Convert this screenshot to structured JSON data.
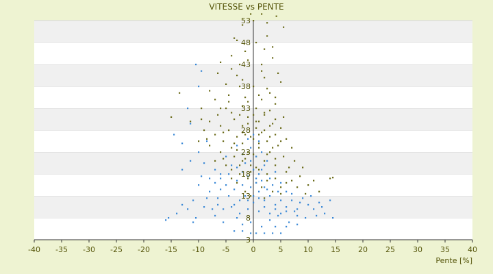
{
  "chart_data": {
    "type": "scatter",
    "title": "VITESSE vs PENTE",
    "xlabel": "Pente [%]",
    "ylabel": "",
    "xlim": [
      -40,
      40
    ],
    "ylim": [
      3,
      53
    ],
    "x_ticks": [
      "-40",
      "-35",
      "-30",
      "-25",
      "-20",
      "-15",
      "-10",
      "-5",
      "0",
      "5",
      "10",
      "15",
      "20",
      "25",
      "30",
      "35",
      "40"
    ],
    "y_ticks": [
      "3",
      "8",
      "13",
      "18",
      "23",
      "28",
      "33",
      "38",
      "43",
      "48",
      "53"
    ],
    "grid": "horizontal bands",
    "legend": "none",
    "series": [
      {
        "color": "#6b6b1a",
        "points": [
          [
            -0.5,
            54.5
          ],
          [
            1.5,
            54.5
          ],
          [
            4.2,
            54
          ],
          [
            0,
            53
          ],
          [
            2.5,
            52.5
          ],
          [
            -2,
            52
          ],
          [
            5.5,
            51.5
          ],
          [
            2.5,
            49.5
          ],
          [
            -3,
            48.5
          ],
          [
            0.5,
            48
          ],
          [
            3.5,
            47
          ],
          [
            -1.5,
            46
          ],
          [
            3.5,
            44.5
          ],
          [
            -6,
            43.5
          ],
          [
            -2.5,
            43
          ],
          [
            1.5,
            43
          ],
          [
            -4,
            42
          ],
          [
            -6.5,
            41
          ],
          [
            4.5,
            41
          ],
          [
            2,
            40
          ],
          [
            -2,
            39.5
          ],
          [
            5,
            39
          ],
          [
            -5,
            38.5
          ],
          [
            -2.5,
            38
          ],
          [
            2.5,
            37.5
          ],
          [
            -13.5,
            36.5
          ],
          [
            -8,
            37
          ],
          [
            -4.5,
            36
          ],
          [
            3,
            36.5
          ],
          [
            -7,
            35
          ],
          [
            1.5,
            35
          ],
          [
            -1,
            34.5
          ],
          [
            4,
            34
          ],
          [
            -9.5,
            33
          ],
          [
            -6,
            33
          ],
          [
            0.5,
            33
          ],
          [
            3,
            32.5
          ],
          [
            -15,
            31
          ],
          [
            -4,
            32
          ],
          [
            -1,
            31
          ],
          [
            2,
            31.5
          ],
          [
            5.5,
            31
          ],
          [
            -11.5,
            30
          ],
          [
            -8,
            30
          ],
          [
            -3.5,
            30.5
          ],
          [
            1,
            30
          ],
          [
            4,
            30.5
          ],
          [
            -6,
            29
          ],
          [
            -2,
            29
          ],
          [
            0.5,
            28.5
          ],
          [
            3,
            29
          ],
          [
            -9,
            28
          ],
          [
            -4.5,
            28
          ],
          [
            2,
            28
          ],
          [
            5,
            28.5
          ],
          [
            -7,
            27
          ],
          [
            -1.5,
            27
          ],
          [
            1,
            27
          ],
          [
            4,
            27
          ],
          [
            -3,
            26.5
          ],
          [
            0,
            26
          ],
          [
            6,
            26
          ],
          [
            -10,
            25.5
          ],
          [
            -5.5,
            25.5
          ],
          [
            -2,
            25
          ],
          [
            2.5,
            25.5
          ],
          [
            -8,
            24.5
          ],
          [
            -4,
            24
          ],
          [
            1,
            24
          ],
          [
            4.5,
            24.5
          ],
          [
            7,
            24
          ],
          [
            -6,
            23
          ],
          [
            -1,
            23
          ],
          [
            3,
            23
          ],
          [
            -3.5,
            22
          ],
          [
            0.5,
            22
          ],
          [
            5.5,
            22
          ],
          [
            -7,
            21
          ],
          [
            -2,
            21
          ],
          [
            2,
            21
          ],
          [
            7.5,
            21
          ],
          [
            -5,
            20
          ],
          [
            -0.5,
            20
          ],
          [
            4,
            20
          ],
          [
            9,
            19.5
          ],
          [
            -4,
            19
          ],
          [
            1,
            19
          ],
          [
            6,
            18.5
          ],
          [
            -2.5,
            18
          ],
          [
            2.5,
            18
          ],
          [
            8.5,
            17.5
          ],
          [
            -1,
            17
          ],
          [
            4,
            17
          ],
          [
            11,
            16.5
          ],
          [
            -3,
            16
          ],
          [
            0.5,
            16
          ],
          [
            6,
            16
          ],
          [
            14,
            17
          ],
          [
            14.5,
            17.2
          ],
          [
            1.5,
            15
          ],
          [
            8,
            15
          ],
          [
            10,
            15.5
          ],
          [
            -1.5,
            14
          ],
          [
            3.5,
            14
          ],
          [
            12,
            14
          ],
          [
            -0.5,
            13
          ],
          [
            5,
            13.5
          ],
          [
            2,
            12.5
          ],
          [
            -5.5,
            21.5
          ],
          [
            -3,
            23.5
          ],
          [
            3,
            26.5
          ],
          [
            -1.5,
            35.5
          ],
          [
            0,
            38
          ],
          [
            -4,
            45
          ],
          [
            1,
            25
          ],
          [
            -2,
            27.5
          ],
          [
            2,
            32
          ],
          [
            0,
            22.5
          ],
          [
            -1,
            29.5
          ],
          [
            1,
            36
          ],
          [
            3.5,
            29.5
          ],
          [
            -5,
            33
          ],
          [
            -3.5,
            25
          ],
          [
            -8.5,
            26
          ],
          [
            -2.5,
            20
          ],
          [
            4,
            21.5
          ],
          [
            6.5,
            19.5
          ],
          [
            2.5,
            16.5
          ],
          [
            -0.5,
            18.5
          ],
          [
            0.5,
            30
          ],
          [
            -2.5,
            31.5
          ],
          [
            1.5,
            27.5
          ],
          [
            3.5,
            24
          ],
          [
            0.5,
            19.5
          ],
          [
            -1.5,
            21.5
          ],
          [
            5,
            15
          ],
          [
            -4,
            17
          ],
          [
            9.5,
            13.5
          ],
          [
            7,
            16.5
          ],
          [
            -6.5,
            31.5
          ],
          [
            -9.5,
            30.5
          ],
          [
            1.5,
            41.5
          ],
          [
            -3,
            40.5
          ],
          [
            -1,
            44
          ],
          [
            2,
            46.5
          ],
          [
            -3.5,
            49
          ],
          [
            4,
            35.5
          ],
          [
            -5.5,
            27.5
          ],
          [
            -0.5,
            26.5
          ],
          [
            2.5,
            22.5
          ],
          [
            5,
            25.5
          ],
          [
            -2,
            33.5
          ],
          [
            0,
            31.5
          ],
          [
            -4.5,
            34.5
          ]
        ]
      },
      {
        "color": "#3a88d6",
        "points": [
          [
            -10.5,
            43
          ],
          [
            -9.5,
            41.5
          ],
          [
            -10,
            38
          ],
          [
            -12,
            33
          ],
          [
            -11.5,
            29.5
          ],
          [
            -14.5,
            27
          ],
          [
            -13,
            25
          ],
          [
            -8.5,
            25.5
          ],
          [
            -10,
            23
          ],
          [
            -11.5,
            21
          ],
          [
            -9,
            20.5
          ],
          [
            -13,
            19
          ],
          [
            -7,
            19
          ],
          [
            -9.5,
            17.5
          ],
          [
            -6,
            17
          ],
          [
            -10,
            15.5
          ],
          [
            -5,
            15.5
          ],
          [
            -8,
            14
          ],
          [
            -3.5,
            14.5
          ],
          [
            -11,
            12
          ],
          [
            -6.5,
            12.5
          ],
          [
            -9,
            10.5
          ],
          [
            -4,
            10.5
          ],
          [
            -15.5,
            8
          ],
          [
            -16,
            7.5
          ],
          [
            -10.5,
            8
          ],
          [
            -11,
            7
          ],
          [
            -7,
            8.5
          ],
          [
            -5.5,
            7
          ],
          [
            -3,
            8
          ],
          [
            -2,
            6.5
          ],
          [
            -0.5,
            7
          ],
          [
            1.5,
            6
          ],
          [
            3,
            7.5
          ],
          [
            4.5,
            8.5
          ],
          [
            6.5,
            7
          ],
          [
            8,
            8.5
          ],
          [
            9.5,
            8
          ],
          [
            11,
            10
          ],
          [
            11.5,
            8.5
          ],
          [
            13,
            9
          ],
          [
            14.5,
            8
          ],
          [
            14,
            12
          ],
          [
            12,
            11.5
          ],
          [
            10,
            11
          ],
          [
            8.5,
            11.5
          ],
          [
            7,
            12
          ],
          [
            6,
            10.5
          ],
          [
            5,
            12
          ],
          [
            4,
            11
          ],
          [
            3,
            13
          ],
          [
            2,
            12
          ],
          [
            1,
            14
          ],
          [
            0.5,
            16
          ],
          [
            -0.5,
            15
          ],
          [
            -1.5,
            13
          ],
          [
            -2.5,
            12
          ],
          [
            -3.5,
            11
          ],
          [
            -4.5,
            13
          ],
          [
            -5.5,
            10
          ],
          [
            -6.5,
            11
          ],
          [
            -7.5,
            10
          ],
          [
            -8.5,
            12.5
          ],
          [
            -1,
            17.5
          ],
          [
            0,
            19
          ],
          [
            1,
            18
          ],
          [
            2,
            20
          ],
          [
            3,
            17
          ],
          [
            -2,
            18.5
          ],
          [
            -3,
            16.5
          ],
          [
            -1.5,
            20.5
          ],
          [
            0.5,
            22
          ],
          [
            1.5,
            23
          ],
          [
            -0.5,
            24
          ],
          [
            -2,
            22.5
          ],
          [
            2.5,
            21
          ],
          [
            4,
            18.5
          ],
          [
            5,
            16
          ],
          [
            6,
            14
          ],
          [
            7,
            13.5
          ],
          [
            8,
            10
          ],
          [
            9,
            12.5
          ],
          [
            10.5,
            13
          ],
          [
            12.5,
            10.5
          ],
          [
            -4,
            20
          ],
          [
            -5,
            22
          ],
          [
            -3,
            24.5
          ],
          [
            -1,
            26
          ],
          [
            0,
            27
          ],
          [
            1,
            25.5
          ],
          [
            -6,
            18
          ],
          [
            -7,
            16
          ],
          [
            -8,
            17
          ],
          [
            -12,
            10
          ],
          [
            -13,
            11
          ],
          [
            -14,
            9
          ],
          [
            -2.5,
            9
          ],
          [
            -1,
            10
          ],
          [
            0,
            11.5
          ],
          [
            1,
            9.5
          ],
          [
            2,
            10.5
          ],
          [
            3,
            9
          ],
          [
            4,
            10
          ],
          [
            5,
            9
          ],
          [
            6,
            9.5
          ],
          [
            7.5,
            9.5
          ],
          [
            -0.5,
            4.5
          ],
          [
            0.5,
            4.5
          ],
          [
            2,
            4.5
          ],
          [
            3.5,
            4.5
          ],
          [
            5,
            4.5
          ],
          [
            -2,
            5
          ],
          [
            -3.5,
            5
          ],
          [
            4,
            6
          ],
          [
            6,
            6
          ],
          [
            8,
            6.5
          ],
          [
            2.5,
            14.5
          ],
          [
            1.5,
            16.5
          ],
          [
            3.5,
            15.5
          ],
          [
            4.5,
            14
          ],
          [
            -4.5,
            18
          ],
          [
            -6,
            14.5
          ],
          [
            -2,
            15.5
          ],
          [
            0,
            13
          ],
          [
            -1,
            12
          ],
          [
            1,
            12.5
          ],
          [
            -3,
            19.5
          ],
          [
            -0.5,
            21
          ],
          [
            1.5,
            19
          ],
          [
            0.5,
            17
          ],
          [
            2,
            15
          ]
        ]
      }
    ]
  }
}
